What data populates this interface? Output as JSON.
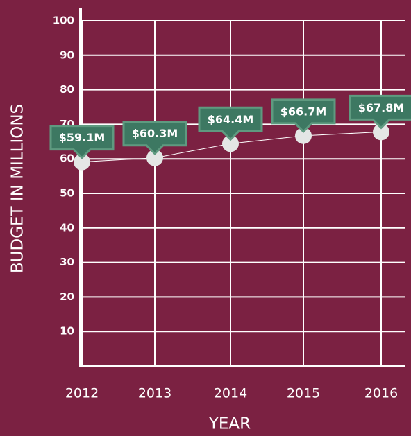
{
  "chart_data": {
    "type": "line",
    "xlabel": "YEAR",
    "ylabel": "BUDGET IN MILLIONS",
    "categories": [
      "2012",
      "2013",
      "2014",
      "2015",
      "2016"
    ],
    "values": [
      59.1,
      60.3,
      64.4,
      66.7,
      67.8
    ],
    "value_labels": [
      "$59.1M",
      "$60.3M",
      "$64.4M",
      "$66.7M",
      "$67.8M"
    ],
    "ylim": [
      0,
      100
    ],
    "yticks": [
      10,
      20,
      30,
      40,
      50,
      60,
      70,
      80,
      90,
      100
    ],
    "grid": true,
    "color": "#ffffff",
    "marker_color": "#e4e6e5",
    "label_color": "#3d7862"
  }
}
